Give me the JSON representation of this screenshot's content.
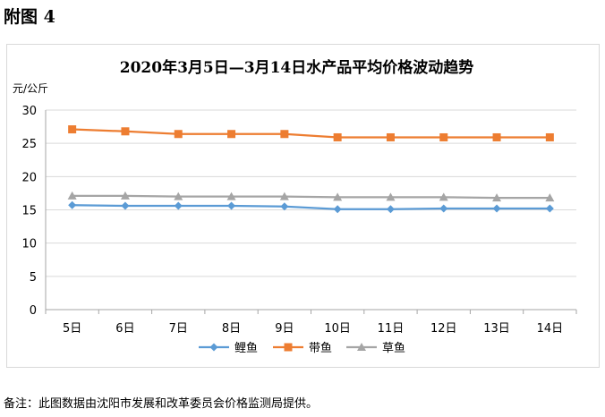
{
  "figure_label": "附图 4",
  "footnote": "备注：此图数据由沈阳市发展和改革委员会价格监测局提供。",
  "chart_data": {
    "type": "line",
    "title": "2020年3月5日—3月14日水产品平均价格波动趋势",
    "ylabel": "元/公斤",
    "xlabel": "",
    "categories": [
      "5日",
      "6日",
      "7日",
      "8日",
      "9日",
      "10日",
      "11日",
      "12日",
      "13日",
      "14日"
    ],
    "ylim": [
      0,
      30
    ],
    "yticks": [
      0,
      5,
      10,
      15,
      20,
      25,
      30
    ],
    "grid": true,
    "legend_position": "bottom",
    "series": [
      {
        "name": "鲤鱼",
        "color": "#5b9bd5",
        "marker": "diamond",
        "values": [
          15.7,
          15.6,
          15.6,
          15.6,
          15.5,
          15.1,
          15.1,
          15.2,
          15.2,
          15.2
        ]
      },
      {
        "name": "带鱼",
        "color": "#ed7d31",
        "marker": "square",
        "values": [
          27.1,
          26.8,
          26.4,
          26.4,
          26.4,
          25.9,
          25.9,
          25.9,
          25.9,
          25.9
        ]
      },
      {
        "name": "草鱼",
        "color": "#a5a5a5",
        "marker": "triangle",
        "values": [
          17.1,
          17.1,
          17.0,
          17.0,
          17.0,
          16.9,
          16.9,
          16.9,
          16.8,
          16.8
        ]
      }
    ]
  }
}
